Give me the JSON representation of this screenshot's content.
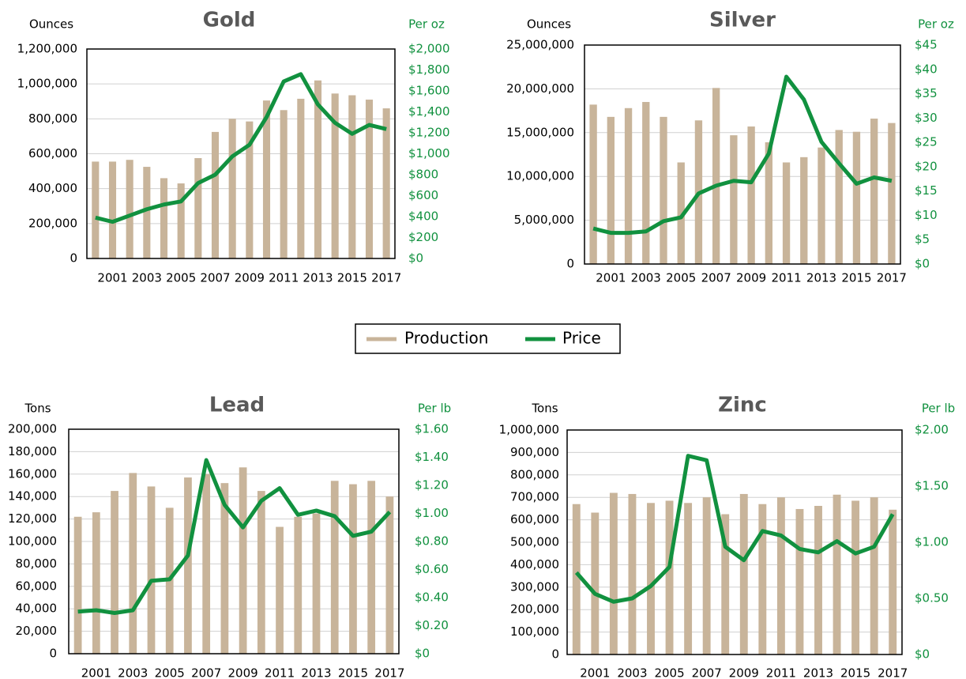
{
  "chart_data": [
    {
      "type": "combo",
      "title": "Gold",
      "y_label": "Ounces",
      "y2_label": "Per oz",
      "categories": [
        null,
        "2001",
        null,
        "2003",
        null,
        "2005",
        null,
        "2007",
        null,
        "2009",
        null,
        "2011",
        null,
        "2013",
        null,
        "2015",
        null,
        "2017"
      ],
      "series": [
        {
          "name": "Production",
          "color": "#c8b49a",
          "values": [
            555000,
            555000,
            565000,
            525000,
            460000,
            430000,
            575000,
            725000,
            800000,
            785000,
            905000,
            850000,
            915000,
            1020000,
            945000,
            935000,
            910000,
            860000
          ]
        },
        {
          "name": "Price",
          "color": "#11913f",
          "axis": "y2",
          "values": [
            390,
            350,
            410,
            470,
            515,
            545,
            720,
            800,
            975,
            1085,
            1350,
            1690,
            1760,
            1470,
            1295,
            1190,
            1275,
            1235
          ]
        }
      ],
      "ylim": [
        0,
        1200000
      ],
      "yticks": [
        0,
        {
          "value": 200000,
          "label": "200,000"
        },
        {
          "value": 400000,
          "label": "400,000"
        },
        {
          "value": 600000,
          "label": "600,000"
        },
        {
          "value": 800000,
          "label": "800,000"
        },
        {
          "value": 1000000,
          "label": "1,000,000"
        },
        {
          "value": 1200000,
          "label": "1,200,000"
        }
      ],
      "y2lim": [
        0,
        2000
      ],
      "y2ticks": [
        {
          "value": 0,
          "label": "$0"
        },
        {
          "value": 200,
          "label": "$200"
        },
        {
          "value": 400,
          "label": "$400"
        },
        {
          "value": 600,
          "label": "$600"
        },
        {
          "value": 800,
          "label": "$800"
        },
        {
          "value": 1000,
          "label": "$1,000"
        },
        {
          "value": 1200,
          "label": "$1,200"
        },
        {
          "value": 1400,
          "label": "$1,400"
        },
        {
          "value": 1600,
          "label": "$1,600"
        },
        {
          "value": 1800,
          "label": "$1,800"
        },
        {
          "value": 2000,
          "label": "$2,000"
        }
      ],
      "grid": true
    },
    {
      "type": "combo",
      "title": "Silver",
      "y_label": "Ounces",
      "y2_label": "Per oz",
      "categories": [
        null,
        "2001",
        null,
        "2003",
        null,
        "2005",
        null,
        "2007",
        null,
        "2009",
        null,
        "2011",
        null,
        "2013",
        null,
        "2015",
        null,
        "2017"
      ],
      "series": [
        {
          "color": "#c8b49a",
          "values": [
            18200000,
            16800000,
            17800000,
            18500000,
            16800000,
            11600000,
            16400000,
            20100000,
            14700000,
            15700000,
            13900000,
            11600000,
            12200000,
            13300000,
            15300000,
            15100000,
            16600000,
            16100000
          ]
        },
        {
          "color": "#11913f",
          "axis": "y2",
          "values": [
            7.3,
            6.4,
            6.4,
            6.7,
            8.8,
            9.6,
            14.5,
            16.1,
            17.1,
            16.8,
            22.7,
            38.5,
            33.8,
            25.1,
            20.7,
            16.5,
            17.8,
            17.1
          ]
        }
      ],
      "ylim": [
        0,
        25000000
      ],
      "yticks": [
        0,
        {
          "value": 5000000,
          "label": "5,000,000"
        },
        {
          "value": 10000000,
          "label": "10,000,000"
        },
        {
          "value": 15000000,
          "label": "15,000,000"
        },
        {
          "value": 20000000,
          "label": "20,000,000"
        },
        {
          "value": 25000000,
          "label": "25,000,000"
        }
      ],
      "y2lim": [
        0,
        45
      ],
      "y2ticks": [
        {
          "value": 0,
          "label": "$0"
        },
        {
          "value": 5,
          "label": "$5"
        },
        {
          "value": 10,
          "label": "$10"
        },
        {
          "value": 15,
          "label": "$15"
        },
        {
          "value": 20,
          "label": "$20"
        },
        {
          "value": 25,
          "label": "$25"
        },
        {
          "value": 30,
          "label": "$30"
        },
        {
          "value": 35,
          "label": "$35"
        },
        {
          "value": 40,
          "label": "$40"
        },
        {
          "value": 45,
          "label": "$45"
        }
      ],
      "grid": true
    },
    {
      "type": "combo",
      "title": "Lead",
      "y_label": "Tons",
      "y2_label": "Per lb",
      "categories": [
        null,
        "2001",
        null,
        "2003",
        null,
        "2005",
        null,
        "2007",
        null,
        "2009",
        null,
        "2011",
        null,
        "2013",
        null,
        "2015",
        null,
        "2017"
      ],
      "series": [
        {
          "color": "#c8b49a",
          "values": [
            122000,
            126000,
            145000,
            161000,
            149000,
            130000,
            157000,
            160000,
            152000,
            166000,
            145000,
            113000,
            122000,
            125000,
            154000,
            151000,
            154000,
            140000
          ]
        },
        {
          "color": "#11913f",
          "axis": "y2",
          "values": [
            0.3,
            0.31,
            0.29,
            0.31,
            0.52,
            0.53,
            0.7,
            1.38,
            1.06,
            0.9,
            1.09,
            1.18,
            0.99,
            1.02,
            0.98,
            0.84,
            0.87,
            1.01
          ]
        }
      ],
      "ylim": [
        0,
        200000
      ],
      "yticks": [
        0,
        {
          "value": 20000,
          "label": "20,000"
        },
        {
          "value": 40000,
          "label": "40,000"
        },
        {
          "value": 60000,
          "label": "60,000"
        },
        {
          "value": 80000,
          "label": "80,000"
        },
        {
          "value": 100000,
          "label": "100,000"
        },
        {
          "value": 120000,
          "label": "120,000"
        },
        {
          "value": 140000,
          "label": "140,000"
        },
        {
          "value": 160000,
          "label": "160,000"
        },
        {
          "value": 180000,
          "label": "180,000"
        },
        {
          "value": 200000,
          "label": "200,000"
        }
      ],
      "y2lim": [
        0,
        1.6
      ],
      "y2ticks": [
        {
          "value": 0,
          "label": "$0"
        },
        {
          "value": 0.2,
          "label": "$0.20"
        },
        {
          "value": 0.4,
          "label": "$0.40"
        },
        {
          "value": 0.6,
          "label": "$0.60"
        },
        {
          "value": 0.8,
          "label": "$0.80"
        },
        {
          "value": 1.0,
          "label": "$1.00"
        },
        {
          "value": 1.2,
          "label": "$1.20"
        },
        {
          "value": 1.4,
          "label": "$1.40"
        },
        {
          "value": 1.6,
          "label": "$1.60"
        }
      ],
      "grid": true
    },
    {
      "type": "combo",
      "title": "Zinc",
      "y_label": "Tons",
      "y2_label": "Per lb",
      "categories": [
        null,
        "2001",
        null,
        "2003",
        null,
        "2005",
        null,
        "2007",
        null,
        "2009",
        null,
        "2011",
        null,
        "2013",
        null,
        "2015",
        null,
        "2017"
      ],
      "series": [
        {
          "color": "#c8b49a",
          "values": [
            670000,
            632000,
            720000,
            715000,
            675000,
            685000,
            675000,
            700000,
            625000,
            715000,
            670000,
            700000,
            648000,
            662000,
            712000,
            685000,
            700000,
            645000
          ]
        },
        {
          "color": "#11913f",
          "axis": "y2",
          "values": [
            0.73,
            0.54,
            0.47,
            0.5,
            0.61,
            0.78,
            1.77,
            1.73,
            0.96,
            0.84,
            1.1,
            1.06,
            0.94,
            0.91,
            1.01,
            0.9,
            0.96,
            1.25
          ]
        }
      ],
      "ylim": [
        0,
        1000000
      ],
      "yticks": [
        0,
        {
          "value": 100000,
          "label": "100,000"
        },
        {
          "value": 200000,
          "label": "200,000"
        },
        {
          "value": 300000,
          "label": "300,000"
        },
        {
          "value": 400000,
          "label": "400,000"
        },
        {
          "value": 500000,
          "label": "500,000"
        },
        {
          "value": 600000,
          "label": "600,000"
        },
        {
          "value": 700000,
          "label": "700,000"
        },
        {
          "value": 800000,
          "label": "800,000"
        },
        {
          "value": 900000,
          "label": "900,000"
        },
        {
          "value": 1000000,
          "label": "1,000,000"
        }
      ],
      "y2lim": [
        0,
        2
      ],
      "y2ticks": [
        {
          "value": 0,
          "label": "$0"
        },
        {
          "value": 0.5,
          "label": "$0.50"
        },
        {
          "value": 1,
          "label": "$1.00"
        },
        {
          "value": 1.5,
          "label": "$1.50"
        },
        {
          "value": 2,
          "label": "$2.00"
        }
      ],
      "grid": true
    }
  ]
}
